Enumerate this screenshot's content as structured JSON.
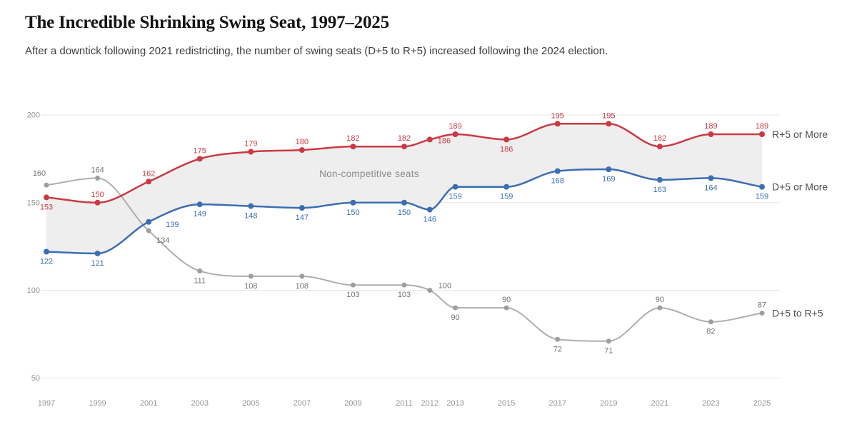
{
  "header": {
    "title": "The Incredible Shrinking Swing Seat, 1997–2025",
    "subtitle": "After a downtick following 2021 redistricting, the number of swing seats (D+5 to R+5) increased following the 2024 election."
  },
  "chart_data": {
    "type": "line",
    "x": [
      1997,
      1999,
      2001,
      2003,
      2005,
      2007,
      2009,
      2011,
      2012,
      2013,
      2015,
      2017,
      2019,
      2021,
      2023,
      2025
    ],
    "x_tick_labels": [
      "1997",
      "1999",
      "2001",
      "2003",
      "2005",
      "2007",
      "2009",
      "2011",
      "2012",
      "2013",
      "2015",
      "2017",
      "2019",
      "2021",
      "2023",
      "2025"
    ],
    "y_gridlines": [
      200,
      150,
      100,
      50
    ],
    "y_tick_labels": [
      "200",
      "150",
      "100",
      "50"
    ],
    "ylim": [
      50,
      200
    ],
    "grid": "horizontal-only",
    "legend_position": "right-of-last-point",
    "series": [
      {
        "name": "R+5 or More",
        "color": "#cb3a43",
        "label_color": "#cb3a43",
        "line_width": 2.5,
        "point_radius": 4,
        "values": [
          153,
          150,
          162,
          175,
          179,
          180,
          182,
          182,
          186,
          189,
          186,
          195,
          195,
          182,
          189,
          189
        ],
        "label_placements": [
          "below",
          "above",
          "above",
          "above",
          "above",
          "above",
          "above",
          "above",
          "right",
          "above",
          "below",
          "above",
          "above",
          "above",
          "above",
          "above"
        ]
      },
      {
        "name": "D+5 or More",
        "color": "#3c6eb1",
        "label_color": "#3c6eb1",
        "line_width": 2.5,
        "point_radius": 4,
        "values": [
          122,
          121,
          139,
          149,
          148,
          147,
          150,
          150,
          146,
          159,
          159,
          168,
          169,
          163,
          164,
          159
        ],
        "label_placements": [
          "below",
          "below",
          "right-far",
          "below",
          "below",
          "below",
          "below",
          "below",
          "below",
          "below",
          "below",
          "below",
          "below",
          "below",
          "below",
          "below"
        ]
      },
      {
        "name": "D+5 to R+5",
        "color": "#aeaeae",
        "point_color": "#9e9e9e",
        "label_color": "#737373",
        "line_width": 2,
        "point_radius": 3.5,
        "values": [
          160,
          164,
          134,
          111,
          108,
          108,
          103,
          103,
          100,
          90,
          90,
          72,
          71,
          90,
          82,
          87
        ],
        "label_placements": [
          "above-left",
          "above",
          "below-right",
          "below",
          "below",
          "below",
          "below",
          "below",
          "right-above",
          "below",
          "above",
          "below",
          "below",
          "above",
          "below",
          "above"
        ]
      }
    ],
    "band": {
      "between": [
        "R+5 or More",
        "D+5 or More"
      ],
      "fill": "#eeeeee",
      "label": "Non-competitive seats",
      "label_color": "#8a8a8a"
    },
    "axis_colors": {
      "gridline": "#e7e7e7",
      "tick_label": "#959595"
    },
    "end_label_color": "#4f4f4f"
  }
}
